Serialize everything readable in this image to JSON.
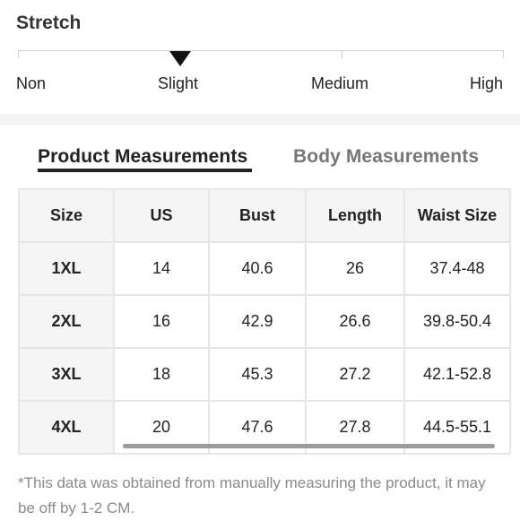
{
  "stretch": {
    "title": "Stretch",
    "levels": [
      "Non",
      "Slight",
      "Medium",
      "High"
    ],
    "selected": "Slight"
  },
  "tabs": [
    {
      "label": "Product Measurements",
      "active": true
    },
    {
      "label": "Body Measurements",
      "active": false
    }
  ],
  "table": {
    "headers": [
      "Size",
      "US",
      "Bust",
      "Length",
      "Waist Size"
    ],
    "rows": [
      [
        "1XL",
        "14",
        "40.6",
        "26",
        "37.4-48"
      ],
      [
        "2XL",
        "16",
        "42.9",
        "26.6",
        "39.8-50.4"
      ],
      [
        "3XL",
        "18",
        "45.3",
        "27.2",
        "42.1-52.8"
      ],
      [
        "4XL",
        "20",
        "47.6",
        "27.8",
        "44.5-55.1"
      ]
    ]
  },
  "note": "*This data was obtained from manually measuring the product, it may be off by 1-2 CM."
}
